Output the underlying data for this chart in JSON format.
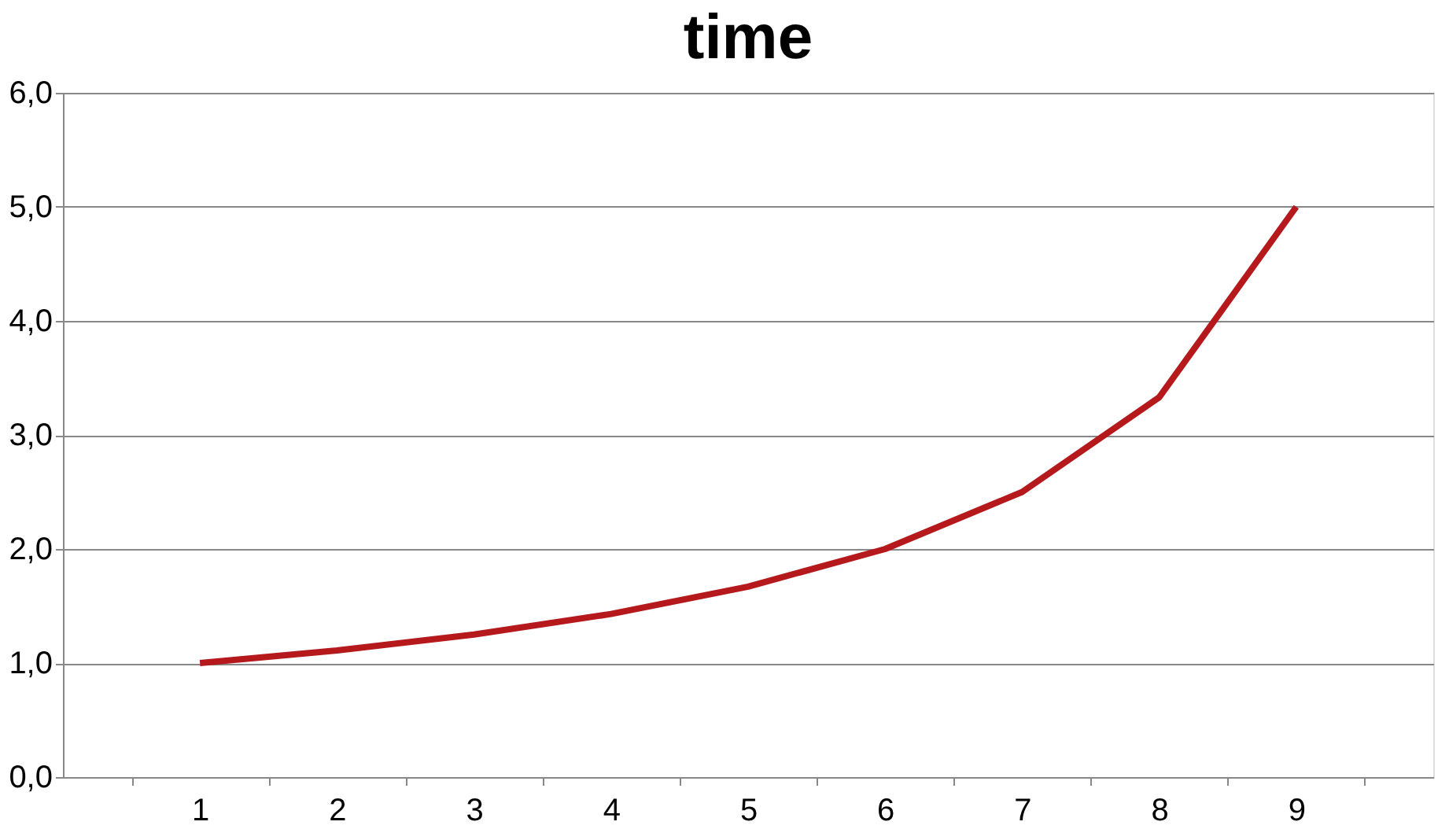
{
  "chart_data": {
    "type": "line",
    "title": "time",
    "categories": [
      "1",
      "2",
      "3",
      "4",
      "5",
      "6",
      "7",
      "8",
      "9"
    ],
    "series": [
      {
        "color": "#b5191c",
        "values": [
          1.0,
          1.11,
          1.25,
          1.43,
          1.67,
          2.0,
          2.5,
          3.33,
          5.0
        ]
      }
    ],
    "ylim": [
      0,
      6
    ],
    "yticks": [
      {
        "value": 0,
        "label": "0,0"
      },
      {
        "value": 1,
        "label": "1,0"
      },
      {
        "value": 2,
        "label": "2,0"
      },
      {
        "value": 3,
        "label": "3,0"
      },
      {
        "value": 4,
        "label": "4,0"
      },
      {
        "value": 5,
        "label": "5,0"
      },
      {
        "value": 6,
        "label": "6,0"
      }
    ],
    "grid": "y",
    "legend": false,
    "marker": "none",
    "line_style": "solid"
  }
}
